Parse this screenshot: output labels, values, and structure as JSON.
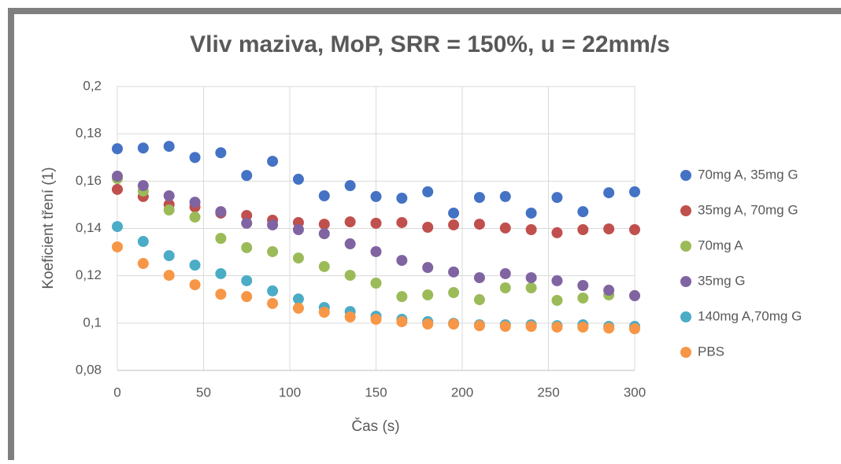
{
  "chart_data": {
    "type": "scatter",
    "title": "Vliv maziva, MoP, SRR = 150%, u = 22mm/s",
    "x_label": "Čas (s)",
    "y_label": "Koeficient tření (1)",
    "x": [
      0,
      15,
      30,
      45,
      60,
      75,
      90,
      105,
      120,
      135,
      150,
      165,
      180,
      195,
      210,
      225,
      240,
      255,
      270,
      285,
      300
    ],
    "series": [
      {
        "name": "70mg A, 35mg G",
        "color": "#4472c4",
        "values": [
          0.1737,
          0.174,
          0.1747,
          0.17,
          0.172,
          0.1624,
          0.1684,
          0.1608,
          0.1538,
          0.1581,
          0.1535,
          0.1528,
          0.1555,
          0.1465,
          0.1531,
          0.1535,
          0.1465,
          0.1531,
          0.1471,
          0.1551,
          0.1555
        ]
      },
      {
        "name": "35mg A, 70mg G",
        "color": "#c0504d",
        "values": [
          0.1565,
          0.1535,
          0.1501,
          0.1491,
          0.1465,
          0.1455,
          0.1435,
          0.1425,
          0.1418,
          0.1428,
          0.1422,
          0.1425,
          0.1405,
          0.1415,
          0.1418,
          0.1402,
          0.1395,
          0.1382,
          0.1395,
          0.1398,
          0.1395
        ]
      },
      {
        "name": "70mg A",
        "color": "#9bbb59",
        "values": [
          0.1611,
          0.1558,
          0.1478,
          0.1448,
          0.1358,
          0.1319,
          0.1302,
          0.1275,
          0.1239,
          0.1202,
          0.1169,
          0.1112,
          0.1119,
          0.1129,
          0.1099,
          0.1149,
          0.1149,
          0.1096,
          0.1106,
          0.1119,
          0.1116
        ]
      },
      {
        "name": "35mg G",
        "color": "#8064a2",
        "values": [
          0.1621,
          0.1581,
          0.1538,
          0.1511,
          0.1471,
          0.1422,
          0.1415,
          0.1395,
          0.1378,
          0.1335,
          0.1302,
          0.1265,
          0.1235,
          0.1216,
          0.1192,
          0.1209,
          0.1192,
          0.1179,
          0.1159,
          0.1139,
          0.1116
        ]
      },
      {
        "name": "140mg A,70mg G",
        "color": "#4bacc6",
        "values": [
          0.1408,
          0.1345,
          0.1285,
          0.1245,
          0.1209,
          0.1179,
          0.1136,
          0.1102,
          0.1066,
          0.1049,
          0.1029,
          0.1016,
          0.1006,
          0.0999,
          0.0993,
          0.0993,
          0.0993,
          0.0989,
          0.0993,
          0.0986,
          0.0986
        ]
      },
      {
        "name": "PBS",
        "color": "#f79646",
        "values": [
          0.1322,
          0.1252,
          0.1202,
          0.1162,
          0.1122,
          0.1112,
          0.1083,
          0.1063,
          0.1046,
          0.1026,
          0.1016,
          0.1006,
          0.0996,
          0.0996,
          0.0989,
          0.0986,
          0.0986,
          0.0983,
          0.0983,
          0.0979,
          0.0976
        ]
      }
    ],
    "xlim": [
      0,
      300
    ],
    "xticks": [
      0,
      50,
      100,
      150,
      200,
      250,
      300
    ],
    "ylim": [
      0.08,
      0.2
    ],
    "yticks": [
      {
        "value": 0.08,
        "label": "0,08"
      },
      {
        "value": 0.1,
        "label": "0,1"
      },
      {
        "value": 0.12,
        "label": "0,12"
      },
      {
        "value": 0.14,
        "label": "0,14"
      },
      {
        "value": 0.16,
        "label": "0,16"
      },
      {
        "value": 0.18,
        "label": "0,18"
      },
      {
        "value": 0.2,
        "label": "0,2"
      }
    ],
    "grid": true,
    "legend": "right"
  }
}
